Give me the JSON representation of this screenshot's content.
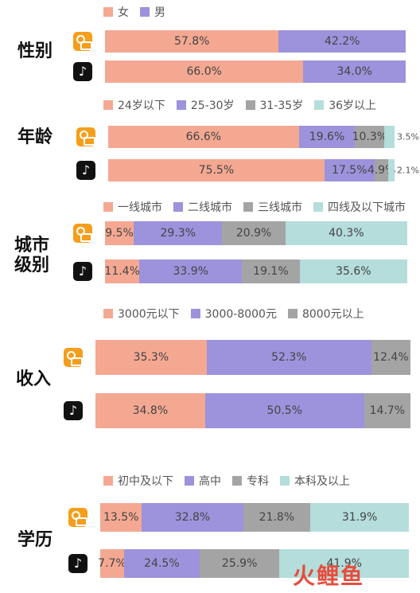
{
  "colors": {
    "c1": "#f4a892",
    "c2": "#9c93dc",
    "c3": "#a4a4a4",
    "c4": "#b4dddb"
  },
  "icons": {
    "kuaishou": "kuaishou-app-icon",
    "douyin": "douyin-app-icon"
  },
  "douyin_glyph": "♪",
  "watermark": "火鲤鱼",
  "chart_data": [
    {
      "type": "bar",
      "orientation": "horizontal-stacked-100",
      "section_label": "性别",
      "legend": [
        "女",
        "男"
      ],
      "categories": [
        "kuaishou",
        "douyin"
      ],
      "series": [
        {
          "name": "女",
          "values": [
            57.8,
            66.0
          ],
          "labels": [
            "57.8%",
            "66.0%"
          ]
        },
        {
          "name": "男",
          "values": [
            42.2,
            34.0
          ],
          "labels": [
            "42.2%",
            "34.0%"
          ]
        }
      ]
    },
    {
      "type": "bar",
      "orientation": "horizontal-stacked-100",
      "section_label": "年龄",
      "legend": [
        "24岁以下",
        "25-30岁",
        "31-35岁",
        "36岁以上"
      ],
      "categories": [
        "kuaishou",
        "douyin"
      ],
      "series": [
        {
          "name": "24岁以下",
          "values": [
            66.6,
            75.5
          ],
          "labels": [
            "66.6%",
            "75.5%"
          ]
        },
        {
          "name": "25-30岁",
          "values": [
            19.6,
            17.5
          ],
          "labels": [
            "19.6%",
            "17.5%"
          ]
        },
        {
          "name": "31-35岁",
          "values": [
            10.3,
            4.9
          ],
          "labels": [
            "10.3%",
            "4.9%"
          ]
        },
        {
          "name": "36岁以上",
          "values": [
            3.5,
            2.1
          ],
          "labels": [
            "3.5%",
            "2.1%"
          ]
        }
      ]
    },
    {
      "type": "bar",
      "orientation": "horizontal-stacked-100",
      "section_label": "城市级别",
      "legend": [
        "一线城市",
        "二线城市",
        "三线城市",
        "四线及以下城市"
      ],
      "categories": [
        "kuaishou",
        "douyin"
      ],
      "series": [
        {
          "name": "一线城市",
          "values": [
            9.5,
            11.4
          ],
          "labels": [
            "9.5%",
            "11.4%"
          ]
        },
        {
          "name": "二线城市",
          "values": [
            29.3,
            33.9
          ],
          "labels": [
            "29.3%",
            "33.9%"
          ]
        },
        {
          "name": "三线城市",
          "values": [
            20.9,
            19.1
          ],
          "labels": [
            "20.9%",
            "19.1%"
          ]
        },
        {
          "name": "四线及以下城市",
          "values": [
            40.3,
            35.6
          ],
          "labels": [
            "40.3%",
            "35.6%"
          ]
        }
      ]
    },
    {
      "type": "bar",
      "orientation": "horizontal-stacked-100",
      "section_label": "收入",
      "legend": [
        "3000元以下",
        "3000-8000元",
        "8000元以上"
      ],
      "categories": [
        "kuaishou",
        "douyin"
      ],
      "series": [
        {
          "name": "3000元以下",
          "values": [
            35.3,
            34.8
          ],
          "labels": [
            "35.3%",
            "34.8%"
          ]
        },
        {
          "name": "3000-8000元",
          "values": [
            52.3,
            50.5
          ],
          "labels": [
            "52.3%",
            "50.5%"
          ]
        },
        {
          "name": "8000元以上",
          "values": [
            12.4,
            14.7
          ],
          "labels": [
            "12.4%",
            "14.7%"
          ]
        }
      ]
    },
    {
      "type": "bar",
      "orientation": "horizontal-stacked-100",
      "section_label": "学历",
      "legend": [
        "初中及以下",
        "高中",
        "专科",
        "本科及以上"
      ],
      "categories": [
        "kuaishou",
        "douyin"
      ],
      "series": [
        {
          "name": "初中及以下",
          "values": [
            13.5,
            7.7
          ],
          "labels": [
            "13.5%",
            "7.7%"
          ]
        },
        {
          "name": "高中",
          "values": [
            32.8,
            24.5
          ],
          "labels": [
            "32.8%",
            "24.5%"
          ]
        },
        {
          "name": "专科",
          "values": [
            21.8,
            25.9
          ],
          "labels": [
            "21.8%",
            "25.9%"
          ]
        },
        {
          "name": "本科及以上",
          "values": [
            31.9,
            41.9
          ],
          "labels": [
            "31.9%",
            "41.9%"
          ]
        }
      ]
    }
  ]
}
